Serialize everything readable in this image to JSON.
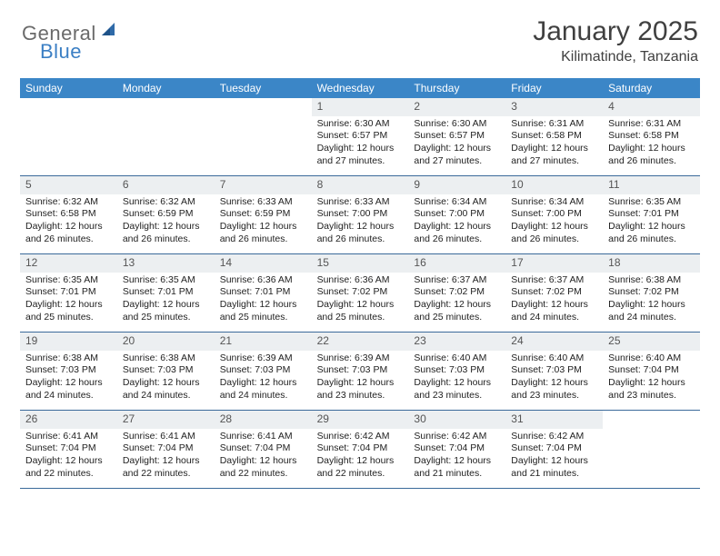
{
  "brand": {
    "text1": "General",
    "text2": "Blue",
    "color_general": "#6a6a6a",
    "color_blue": "#3b7fc4",
    "icon_color": "#2f6aa8"
  },
  "title": "January 2025",
  "location": "Kilimatinde, Tanzania",
  "header_bg": "#3b86c7",
  "week_border": "#3b6a9a",
  "day_number_bg": "#eceff1",
  "weekdays": [
    "Sunday",
    "Monday",
    "Tuesday",
    "Wednesday",
    "Thursday",
    "Friday",
    "Saturday"
  ],
  "weeks": [
    [
      {
        "n": "",
        "lines": []
      },
      {
        "n": "",
        "lines": []
      },
      {
        "n": "",
        "lines": []
      },
      {
        "n": "1",
        "lines": [
          "Sunrise: 6:30 AM",
          "Sunset: 6:57 PM",
          "Daylight: 12 hours",
          "and 27 minutes."
        ]
      },
      {
        "n": "2",
        "lines": [
          "Sunrise: 6:30 AM",
          "Sunset: 6:57 PM",
          "Daylight: 12 hours",
          "and 27 minutes."
        ]
      },
      {
        "n": "3",
        "lines": [
          "Sunrise: 6:31 AM",
          "Sunset: 6:58 PM",
          "Daylight: 12 hours",
          "and 27 minutes."
        ]
      },
      {
        "n": "4",
        "lines": [
          "Sunrise: 6:31 AM",
          "Sunset: 6:58 PM",
          "Daylight: 12 hours",
          "and 26 minutes."
        ]
      }
    ],
    [
      {
        "n": "5",
        "lines": [
          "Sunrise: 6:32 AM",
          "Sunset: 6:58 PM",
          "Daylight: 12 hours",
          "and 26 minutes."
        ]
      },
      {
        "n": "6",
        "lines": [
          "Sunrise: 6:32 AM",
          "Sunset: 6:59 PM",
          "Daylight: 12 hours",
          "and 26 minutes."
        ]
      },
      {
        "n": "7",
        "lines": [
          "Sunrise: 6:33 AM",
          "Sunset: 6:59 PM",
          "Daylight: 12 hours",
          "and 26 minutes."
        ]
      },
      {
        "n": "8",
        "lines": [
          "Sunrise: 6:33 AM",
          "Sunset: 7:00 PM",
          "Daylight: 12 hours",
          "and 26 minutes."
        ]
      },
      {
        "n": "9",
        "lines": [
          "Sunrise: 6:34 AM",
          "Sunset: 7:00 PM",
          "Daylight: 12 hours",
          "and 26 minutes."
        ]
      },
      {
        "n": "10",
        "lines": [
          "Sunrise: 6:34 AM",
          "Sunset: 7:00 PM",
          "Daylight: 12 hours",
          "and 26 minutes."
        ]
      },
      {
        "n": "11",
        "lines": [
          "Sunrise: 6:35 AM",
          "Sunset: 7:01 PM",
          "Daylight: 12 hours",
          "and 26 minutes."
        ]
      }
    ],
    [
      {
        "n": "12",
        "lines": [
          "Sunrise: 6:35 AM",
          "Sunset: 7:01 PM",
          "Daylight: 12 hours",
          "and 25 minutes."
        ]
      },
      {
        "n": "13",
        "lines": [
          "Sunrise: 6:35 AM",
          "Sunset: 7:01 PM",
          "Daylight: 12 hours",
          "and 25 minutes."
        ]
      },
      {
        "n": "14",
        "lines": [
          "Sunrise: 6:36 AM",
          "Sunset: 7:01 PM",
          "Daylight: 12 hours",
          "and 25 minutes."
        ]
      },
      {
        "n": "15",
        "lines": [
          "Sunrise: 6:36 AM",
          "Sunset: 7:02 PM",
          "Daylight: 12 hours",
          "and 25 minutes."
        ]
      },
      {
        "n": "16",
        "lines": [
          "Sunrise: 6:37 AM",
          "Sunset: 7:02 PM",
          "Daylight: 12 hours",
          "and 25 minutes."
        ]
      },
      {
        "n": "17",
        "lines": [
          "Sunrise: 6:37 AM",
          "Sunset: 7:02 PM",
          "Daylight: 12 hours",
          "and 24 minutes."
        ]
      },
      {
        "n": "18",
        "lines": [
          "Sunrise: 6:38 AM",
          "Sunset: 7:02 PM",
          "Daylight: 12 hours",
          "and 24 minutes."
        ]
      }
    ],
    [
      {
        "n": "19",
        "lines": [
          "Sunrise: 6:38 AM",
          "Sunset: 7:03 PM",
          "Daylight: 12 hours",
          "and 24 minutes."
        ]
      },
      {
        "n": "20",
        "lines": [
          "Sunrise: 6:38 AM",
          "Sunset: 7:03 PM",
          "Daylight: 12 hours",
          "and 24 minutes."
        ]
      },
      {
        "n": "21",
        "lines": [
          "Sunrise: 6:39 AM",
          "Sunset: 7:03 PM",
          "Daylight: 12 hours",
          "and 24 minutes."
        ]
      },
      {
        "n": "22",
        "lines": [
          "Sunrise: 6:39 AM",
          "Sunset: 7:03 PM",
          "Daylight: 12 hours",
          "and 23 minutes."
        ]
      },
      {
        "n": "23",
        "lines": [
          "Sunrise: 6:40 AM",
          "Sunset: 7:03 PM",
          "Daylight: 12 hours",
          "and 23 minutes."
        ]
      },
      {
        "n": "24",
        "lines": [
          "Sunrise: 6:40 AM",
          "Sunset: 7:03 PM",
          "Daylight: 12 hours",
          "and 23 minutes."
        ]
      },
      {
        "n": "25",
        "lines": [
          "Sunrise: 6:40 AM",
          "Sunset: 7:04 PM",
          "Daylight: 12 hours",
          "and 23 minutes."
        ]
      }
    ],
    [
      {
        "n": "26",
        "lines": [
          "Sunrise: 6:41 AM",
          "Sunset: 7:04 PM",
          "Daylight: 12 hours",
          "and 22 minutes."
        ]
      },
      {
        "n": "27",
        "lines": [
          "Sunrise: 6:41 AM",
          "Sunset: 7:04 PM",
          "Daylight: 12 hours",
          "and 22 minutes."
        ]
      },
      {
        "n": "28",
        "lines": [
          "Sunrise: 6:41 AM",
          "Sunset: 7:04 PM",
          "Daylight: 12 hours",
          "and 22 minutes."
        ]
      },
      {
        "n": "29",
        "lines": [
          "Sunrise: 6:42 AM",
          "Sunset: 7:04 PM",
          "Daylight: 12 hours",
          "and 22 minutes."
        ]
      },
      {
        "n": "30",
        "lines": [
          "Sunrise: 6:42 AM",
          "Sunset: 7:04 PM",
          "Daylight: 12 hours",
          "and 21 minutes."
        ]
      },
      {
        "n": "31",
        "lines": [
          "Sunrise: 6:42 AM",
          "Sunset: 7:04 PM",
          "Daylight: 12 hours",
          "and 21 minutes."
        ]
      },
      {
        "n": "",
        "lines": []
      }
    ]
  ]
}
